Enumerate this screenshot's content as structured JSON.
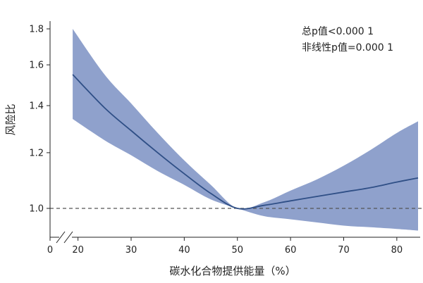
{
  "chart_data": {
    "type": "line",
    "xlabel": "碳水化合物提供能量（%）",
    "ylabel": "风险比",
    "xlim": [
      17,
      84
    ],
    "x_break": true,
    "x_ticks": [
      0,
      20,
      30,
      40,
      50,
      60,
      70,
      80
    ],
    "y_ticks": [
      1.0,
      1.2,
      1.4,
      1.6,
      1.8
    ],
    "y_scale": "log",
    "reference_line": {
      "y": 1.0,
      "style": "dashed"
    },
    "annotations": [
      "总p值<0.000 1",
      "非线性p值=0.000 1"
    ],
    "colors": {
      "line": "#2f4f86",
      "band": "#8fa1cc",
      "reference": "#555555"
    },
    "series": [
      {
        "x": [
          19,
          25,
          30,
          35,
          40,
          45,
          50,
          55,
          60,
          65,
          70,
          75,
          80,
          84
        ],
        "y": [
          1.55,
          1.39,
          1.29,
          1.2,
          1.12,
          1.05,
          1.0,
          1.01,
          1.025,
          1.04,
          1.055,
          1.07,
          1.09,
          1.105
        ],
        "lower": [
          1.34,
          1.25,
          1.19,
          1.13,
          1.08,
          1.03,
          1.0,
          0.975,
          0.965,
          0.955,
          0.945,
          0.94,
          0.935,
          0.93
        ],
        "upper": [
          1.8,
          1.55,
          1.41,
          1.28,
          1.17,
          1.08,
          1.0,
          1.02,
          1.06,
          1.1,
          1.15,
          1.21,
          1.28,
          1.33
        ]
      }
    ]
  }
}
